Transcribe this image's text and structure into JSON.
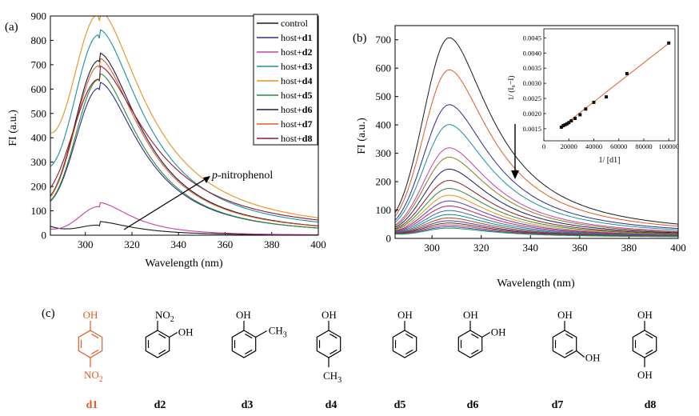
{
  "chart_data": [
    {
      "panel_label": "(a)",
      "type": "line",
      "xlabel": "Wavelength (nm)",
      "ylabel": "FI (a.u.)",
      "xlim": [
        285,
        400
      ],
      "ylim": [
        0,
        900
      ],
      "xticks": [
        300,
        320,
        340,
        360,
        380,
        400
      ],
      "yticks": [
        0,
        100,
        200,
        300,
        400,
        500,
        600,
        700,
        800,
        900
      ],
      "legend_placement": "top-right",
      "annotation": {
        "italic": "p",
        "text": "-nitrophenol"
      },
      "series": [
        {
          "prefix": "control",
          "bold": "",
          "color": "#1a1a1a",
          "peak": 38,
          "width": 10,
          "base": 35,
          "tail": 3
        },
        {
          "prefix": "host+",
          "bold": "d1",
          "color": "#2d2c8a",
          "peak": 598,
          "width": 12.3,
          "base": 60,
          "tail": 5
        },
        {
          "prefix": "host+",
          "bold": "d2",
          "color": "#c93ea6",
          "peak": 116,
          "width": 10,
          "base": 20,
          "tail": 3
        },
        {
          "prefix": "host+",
          "bold": "d3",
          "color": "#1a8fa3",
          "peak": 808,
          "width": 13,
          "base": 150,
          "tail": 6
        },
        {
          "prefix": "host+",
          "bold": "d4",
          "color": "#e69020",
          "peak": 882,
          "width": 13.5,
          "base": 255,
          "tail": 7
        },
        {
          "prefix": "host+",
          "bold": "d5",
          "color": "#2a8a3a",
          "peak": 634,
          "width": 12.2,
          "base": 60,
          "tail": 5
        },
        {
          "prefix": "host+",
          "bold": "d6",
          "color": "#1c1c3a",
          "peak": 712,
          "width": 12.5,
          "base": 60,
          "tail": 6
        },
        {
          "prefix": "host+",
          "bold": "d7",
          "color": "#e05a25",
          "peak": 690,
          "width": 12.5,
          "base": 60,
          "tail": 6
        },
        {
          "prefix": "host+",
          "bold": "d8",
          "color": "#8a1c2e",
          "peak": 635,
          "width": 14,
          "base": 60,
          "tail": 10
        }
      ]
    },
    {
      "panel_label": "(b)",
      "type": "line",
      "xlabel": "Wavelength (nm)",
      "ylabel": "FI (a.u.)",
      "xlim": [
        285,
        400
      ],
      "ylim": [
        0,
        750
      ],
      "xticks": [
        300,
        320,
        340,
        360,
        380,
        400
      ],
      "yticks": [
        0,
        100,
        200,
        300,
        400,
        500,
        600,
        700
      ],
      "peak_values": [
        703,
        590,
        467,
        397,
        315,
        282,
        240,
        200,
        172,
        148,
        128,
        110,
        94,
        80,
        68,
        58,
        50,
        43,
        37,
        32
      ],
      "colors": [
        "#1a1a1a",
        "#e05a25",
        "#2d2c8a",
        "#1a8fa3",
        "#c93ea6",
        "#8a7a20",
        "#1c1c5a",
        "#8a1c2e",
        "#2a8a3a",
        "#e69020",
        "#5a3aa8",
        "#c02060",
        "#3a6ab0",
        "#0a8a8a",
        "#a04a1a",
        "#6a2a8a",
        "#3a3a3a",
        "#d04040",
        "#4040d0",
        "#20a040"
      ],
      "inset": {
        "type": "scatter",
        "xlabel": "1/ [d1]",
        "ylabel": "1/ (I₀−I)",
        "xlim": [
          0,
          105000
        ],
        "ylim": [
          0.0011,
          0.0048
        ],
        "xticks": [
          0,
          20000,
          40000,
          60000,
          80000,
          100000
        ],
        "yticks": [
          0.0015,
          0.002,
          0.0025,
          0.003,
          0.0035,
          0.004,
          0.0045
        ],
        "xtick_labels": [
          "0",
          "20000",
          "40000",
          "60000",
          "80000",
          "100000"
        ],
        "ytick_labels": [
          "0.0015",
          "0.0020",
          "0.0025",
          "0.0030",
          "0.0035",
          "0.0040",
          "0.0045"
        ],
        "x": [
          14000,
          15500,
          17000,
          18500,
          20000,
          22000,
          25000,
          29000,
          33500,
          40000,
          50000,
          66500,
          100000
        ],
        "y": [
          0.00155,
          0.0016,
          0.00163,
          0.00166,
          0.0017,
          0.00176,
          0.00184,
          0.00196,
          0.00215,
          0.00237,
          0.00255,
          0.00332,
          0.00433
        ],
        "fit": {
          "x": [
            14000,
            100000
          ],
          "y": [
            0.00155,
            0.00432
          ]
        }
      }
    }
  ],
  "structures": {
    "panel_label": "(c)",
    "OH": "OH",
    "NO": "NO",
    "CH": "CH",
    "sub2": "2",
    "sub3": "3",
    "accent_color": "#e05a25",
    "captions": [
      "d1",
      "d2",
      "d3",
      "d4",
      "d5",
      "d6",
      "d7",
      "d8"
    ]
  }
}
